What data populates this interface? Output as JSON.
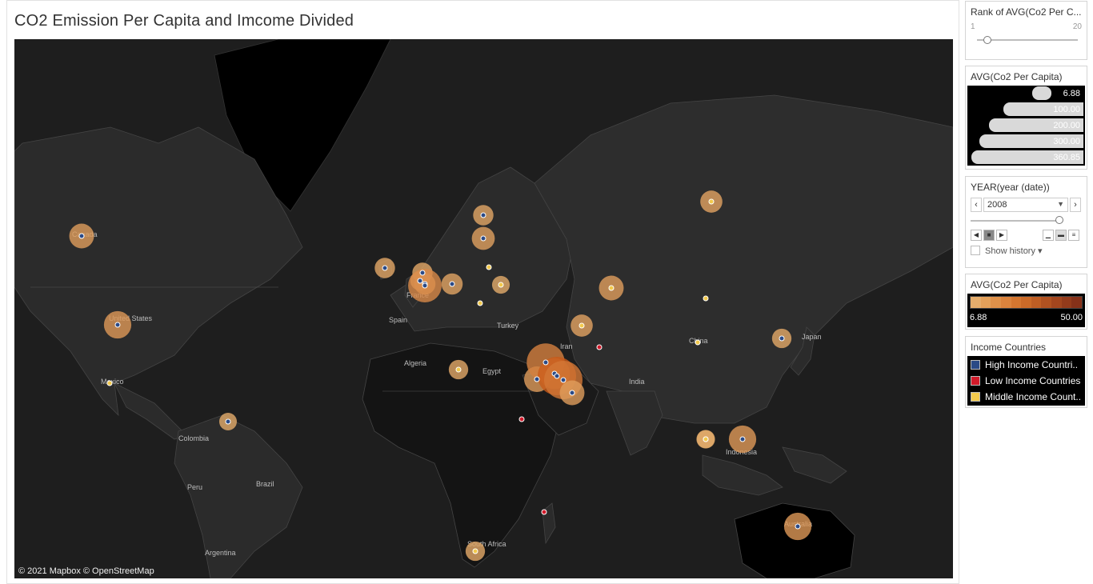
{
  "title": "CO2 Emission Per Capita and Imcome Divided",
  "attribution": "© 2021 Mapbox © OpenStreetMap",
  "map_labels": [
    "Canada",
    "United States",
    "Mexico",
    "Colombia",
    "Peru",
    "Brazil",
    "Argentina",
    "Spain",
    "France",
    "Turkey",
    "Algeria",
    "Egypt",
    "Iran",
    "India",
    "China",
    "Japan",
    "Indonesia",
    "Australia",
    "South Africa"
  ],
  "colors": {
    "map_bg": "#1e1e1e",
    "land": "#2a2a2a",
    "high_income": "#2b4a86",
    "low_income": "#d11a2a",
    "middle_income": "#f2c94c",
    "bubble_light": "#e8a45f",
    "bubble_dark": "#d46a1b"
  },
  "map_points": [
    {
      "country": "Canada",
      "income": "high",
      "co2": 15
    },
    {
      "country": "United States",
      "income": "high",
      "co2": 18
    },
    {
      "country": "Mexico",
      "income": "middle",
      "co2": 4
    },
    {
      "country": "Venezuela",
      "income": "high",
      "co2": 6.9
    },
    {
      "country": "Ireland",
      "income": "high",
      "co2": 10
    },
    {
      "country": "United Kingdom",
      "income": "high",
      "co2": 9
    },
    {
      "country": "Belgium",
      "income": "high",
      "co2": 11
    },
    {
      "country": "Netherlands",
      "income": "high",
      "co2": 10
    },
    {
      "country": "Luxembourg",
      "income": "high",
      "co2": 25
    },
    {
      "country": "Czech Republic",
      "income": "high",
      "co2": 11
    },
    {
      "country": "Finland",
      "income": "high",
      "co2": 10
    },
    {
      "country": "Estonia",
      "income": "high",
      "co2": 13
    },
    {
      "country": "Belarus",
      "income": "middle",
      "co2": 6
    },
    {
      "country": "Ukraine",
      "income": "middle",
      "co2": 7
    },
    {
      "country": "Romania",
      "income": "middle",
      "co2": 4
    },
    {
      "country": "Kazakhstan",
      "income": "middle",
      "co2": 15
    },
    {
      "country": "Russia",
      "income": "middle",
      "co2": 12
    },
    {
      "country": "Turkmenistan",
      "income": "middle",
      "co2": 12
    },
    {
      "country": "China",
      "income": "middle",
      "co2": 5
    },
    {
      "country": "Mongolia",
      "income": "middle",
      "co2": 5
    },
    {
      "country": "Japan",
      "income": "high",
      "co2": 9
    },
    {
      "country": "Saudi Arabia",
      "income": "high",
      "co2": 16
    },
    {
      "country": "Kuwait",
      "income": "high",
      "co2": 30
    },
    {
      "country": "Bahrain",
      "income": "high",
      "co2": 22
    },
    {
      "country": "Qatar",
      "income": "high",
      "co2": 50
    },
    {
      "country": "United Arab Emirates",
      "income": "high",
      "co2": 35
    },
    {
      "country": "Oman",
      "income": "high",
      "co2": 15
    },
    {
      "country": "Libya",
      "income": "middle",
      "co2": 9
    },
    {
      "country": "Singapore",
      "income": "high",
      "co2": 8
    },
    {
      "country": "Brunei",
      "income": "high",
      "co2": 18
    },
    {
      "country": "Malaysia",
      "income": "middle",
      "co2": 7
    },
    {
      "country": "Australia",
      "income": "high",
      "co2": 18
    },
    {
      "country": "South Africa",
      "income": "middle",
      "co2": 9
    },
    {
      "country": "Afghanistan",
      "income": "low",
      "co2": 0.3
    },
    {
      "country": "Ethiopia",
      "income": "low",
      "co2": 0.1
    },
    {
      "country": "Madagascar",
      "income": "low",
      "co2": 0.1
    }
  ],
  "rank_filter": {
    "title": "Rank of AVG(Co2 Per C...",
    "min": "1",
    "max": "20",
    "value": 1
  },
  "size_legend": {
    "title": "AVG(Co2 Per Capita)",
    "values": [
      "6.88",
      "100.00",
      "200.00",
      "300.00",
      "360.85"
    ]
  },
  "year_filter": {
    "title": "YEAR(year (date))",
    "value": "2008",
    "show_history": "Show history"
  },
  "color_legend": {
    "title": "AVG(Co2 Per Capita)",
    "min": "6.88",
    "max": "50.00"
  },
  "income_legend": {
    "title": "Income Countries",
    "items": [
      "High Income Countri..",
      "Low Income Countries",
      "Middle Income Count.."
    ]
  }
}
